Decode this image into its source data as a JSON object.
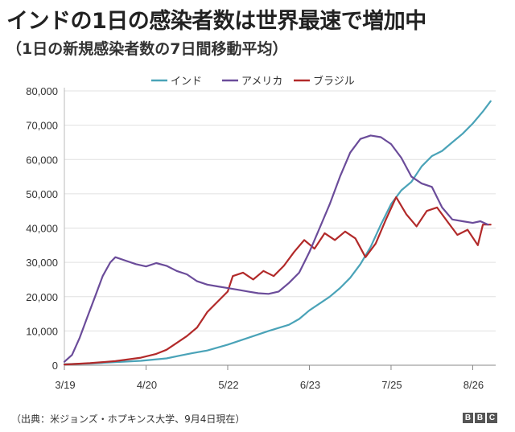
{
  "title": "インドの1日の感染者数は世界最速で増加中",
  "subtitle": "（1日の新規感染者数の7日間移動平均）",
  "source": "（出典：米ジョンズ・ホプキンス大学、9月4日現在）",
  "logo": [
    "B",
    "B",
    "C"
  ],
  "colors": {
    "india": "#4aa3b8",
    "usa": "#6b4c9a",
    "brazil": "#b22a2a",
    "grid": "#e0e0e0",
    "axis": "#bbbbbb"
  },
  "chart_data": {
    "type": "line",
    "title": "インドの1日の感染者数は世界最速で増加中",
    "xlabel": "",
    "ylabel": "",
    "x_ticks": [
      {
        "day": 0,
        "label": "3/19"
      },
      {
        "day": 32,
        "label": "4/20"
      },
      {
        "day": 64,
        "label": "5/22"
      },
      {
        "day": 96,
        "label": "6/23"
      },
      {
        "day": 128,
        "label": "7/25"
      },
      {
        "day": 160,
        "label": "8/26"
      }
    ],
    "xlim": [
      0,
      169
    ],
    "ylim": [
      0,
      80000
    ],
    "y_ticks": [
      0,
      10000,
      20000,
      30000,
      40000,
      50000,
      60000,
      70000,
      80000
    ],
    "y_tick_labels": [
      "0",
      "10,000",
      "20,000",
      "30,000",
      "40,000",
      "50,000",
      "60,000",
      "70,000",
      "80,000"
    ],
    "legend": [
      "インド",
      "アメリカ",
      "ブラジル"
    ],
    "legend_position": "top-center",
    "series": [
      {
        "name": "インド",
        "color_key": "india",
        "points": [
          [
            0,
            300
          ],
          [
            10,
            500
          ],
          [
            20,
            900
          ],
          [
            30,
            1300
          ],
          [
            40,
            2000
          ],
          [
            46,
            2900
          ],
          [
            50,
            3500
          ],
          [
            56,
            4300
          ],
          [
            64,
            6000
          ],
          [
            72,
            8000
          ],
          [
            80,
            10000
          ],
          [
            88,
            11800
          ],
          [
            92,
            13500
          ],
          [
            96,
            16000
          ],
          [
            100,
            18000
          ],
          [
            104,
            20000
          ],
          [
            108,
            22500
          ],
          [
            112,
            25500
          ],
          [
            116,
            29500
          ],
          [
            120,
            34500
          ],
          [
            124,
            41000
          ],
          [
            128,
            47000
          ],
          [
            132,
            51000
          ],
          [
            136,
            53500
          ],
          [
            140,
            58000
          ],
          [
            144,
            61000
          ],
          [
            148,
            62500
          ],
          [
            152,
            65000
          ],
          [
            156,
            67500
          ],
          [
            160,
            70500
          ],
          [
            164,
            74000
          ],
          [
            167,
            77000
          ]
        ]
      },
      {
        "name": "アメリカ",
        "color_key": "usa",
        "points": [
          [
            0,
            1000
          ],
          [
            3,
            3000
          ],
          [
            6,
            8000
          ],
          [
            9,
            14000
          ],
          [
            12,
            20000
          ],
          [
            15,
            26000
          ],
          [
            18,
            30000
          ],
          [
            20,
            31500
          ],
          [
            24,
            30500
          ],
          [
            28,
            29500
          ],
          [
            32,
            28800
          ],
          [
            36,
            29800
          ],
          [
            40,
            29000
          ],
          [
            44,
            27500
          ],
          [
            48,
            26500
          ],
          [
            52,
            24500
          ],
          [
            56,
            23500
          ],
          [
            60,
            23000
          ],
          [
            64,
            22500
          ],
          [
            68,
            22000
          ],
          [
            72,
            21500
          ],
          [
            76,
            21000
          ],
          [
            80,
            20800
          ],
          [
            84,
            21500
          ],
          [
            88,
            24000
          ],
          [
            92,
            27000
          ],
          [
            96,
            33000
          ],
          [
            100,
            40000
          ],
          [
            104,
            47000
          ],
          [
            108,
            55000
          ],
          [
            112,
            62000
          ],
          [
            116,
            66000
          ],
          [
            120,
            67000
          ],
          [
            124,
            66500
          ],
          [
            128,
            64500
          ],
          [
            132,
            60500
          ],
          [
            136,
            55000
          ],
          [
            140,
            53000
          ],
          [
            144,
            52000
          ],
          [
            148,
            46000
          ],
          [
            152,
            42500
          ],
          [
            156,
            42000
          ],
          [
            160,
            41500
          ],
          [
            163,
            42000
          ],
          [
            166,
            41000
          ]
        ]
      },
      {
        "name": "ブラジル",
        "color_key": "brazil",
        "points": [
          [
            0,
            200
          ],
          [
            10,
            600
          ],
          [
            20,
            1200
          ],
          [
            30,
            2200
          ],
          [
            36,
            3300
          ],
          [
            40,
            4500
          ],
          [
            44,
            6500
          ],
          [
            48,
            8500
          ],
          [
            52,
            11000
          ],
          [
            56,
            15500
          ],
          [
            60,
            18500
          ],
          [
            64,
            21500
          ],
          [
            66,
            26000
          ],
          [
            70,
            27000
          ],
          [
            74,
            25000
          ],
          [
            78,
            27500
          ],
          [
            82,
            26000
          ],
          [
            86,
            29000
          ],
          [
            90,
            33000
          ],
          [
            94,
            36500
          ],
          [
            98,
            34000
          ],
          [
            102,
            38500
          ],
          [
            106,
            36500
          ],
          [
            110,
            39000
          ],
          [
            114,
            37000
          ],
          [
            118,
            31500
          ],
          [
            122,
            35500
          ],
          [
            126,
            42500
          ],
          [
            130,
            49000
          ],
          [
            134,
            44000
          ],
          [
            138,
            40500
          ],
          [
            142,
            45000
          ],
          [
            146,
            46000
          ],
          [
            150,
            42000
          ],
          [
            154,
            38000
          ],
          [
            158,
            39500
          ],
          [
            162,
            35000
          ],
          [
            164,
            41000
          ],
          [
            167,
            41000
          ]
        ]
      }
    ]
  }
}
